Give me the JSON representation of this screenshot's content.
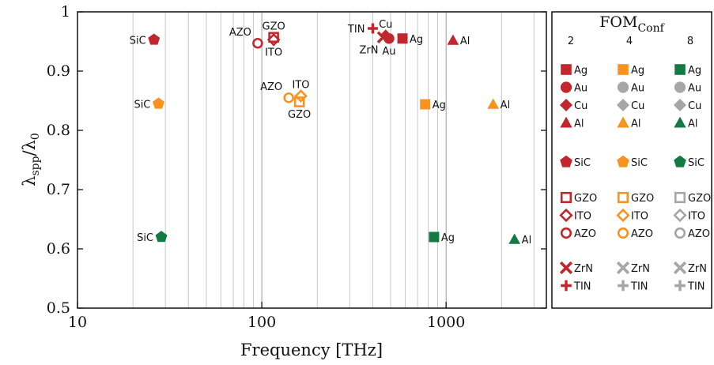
{
  "chart_data": {
    "type": "scatter",
    "title": "",
    "xlabel": "Frequency [THz]",
    "ylabel": "λspp/λ0",
    "ylabel_main": "λ",
    "ylabel_sub1": "spp",
    "ylabel_mid": "/λ",
    "ylabel_sub2": "0",
    "x_scale": "log",
    "xlim": [
      10,
      3500
    ],
    "ylim": [
      0.5,
      1.0
    ],
    "x_ticks": [
      10,
      100,
      1000
    ],
    "x_tick_labels": [
      "10",
      "100",
      "1000"
    ],
    "y_ticks": [
      0.5,
      0.6,
      0.7,
      0.8,
      0.9,
      1.0
    ],
    "y_tick_labels": [
      "0.5",
      "0.6",
      "0.7",
      "0.8",
      "0.9",
      "1"
    ],
    "grid": "vertical minor and major lines on x",
    "colors": {
      "2": "#c1272d",
      "4": "#f7931e",
      "8": "#137a43",
      "gray": "#a6a6a6"
    },
    "points": [
      {
        "group": "2",
        "material": "SiC",
        "marker": "pentagon",
        "fill": "filled",
        "x": 26,
        "y": 0.953,
        "label": "SiC",
        "label_pos": "left"
      },
      {
        "group": "2",
        "material": "AZO",
        "marker": "circle",
        "fill": "open",
        "x": 95,
        "y": 0.947,
        "label": "AZO",
        "label_pos": "above-left"
      },
      {
        "group": "2",
        "material": "GZO",
        "marker": "square",
        "fill": "open",
        "x": 116,
        "y": 0.957,
        "label": "GZO",
        "label_pos": "above"
      },
      {
        "group": "2",
        "material": "ITO",
        "marker": "diamond",
        "fill": "open",
        "x": 116,
        "y": 0.953,
        "label": "ITO",
        "label_pos": "below"
      },
      {
        "group": "2",
        "material": "TIN",
        "marker": "plus",
        "fill": "filled",
        "x": 400,
        "y": 0.972,
        "label": "TIN",
        "label_pos": "left"
      },
      {
        "group": "2",
        "material": "Cu",
        "marker": "diamond",
        "fill": "filled",
        "x": 470,
        "y": 0.96,
        "label": "Cu",
        "label_pos": "above"
      },
      {
        "group": "2",
        "material": "ZrN",
        "marker": "x",
        "fill": "filled",
        "x": 455,
        "y": 0.957,
        "label": "ZrN",
        "label_pos": "below-left"
      },
      {
        "group": "2",
        "material": "Au",
        "marker": "circle",
        "fill": "filled",
        "x": 490,
        "y": 0.955,
        "label": "Au",
        "label_pos": "below"
      },
      {
        "group": "2",
        "material": "Ag",
        "marker": "square",
        "fill": "filled",
        "x": 580,
        "y": 0.955,
        "label": "Ag",
        "label_pos": "right"
      },
      {
        "group": "2",
        "material": "Al",
        "marker": "triangle",
        "fill": "filled",
        "x": 1090,
        "y": 0.952,
        "label": "Al",
        "label_pos": "right"
      },
      {
        "group": "4",
        "material": "SiC",
        "marker": "pentagon",
        "fill": "filled",
        "x": 27.5,
        "y": 0.845,
        "label": "SiC",
        "label_pos": "left"
      },
      {
        "group": "4",
        "material": "AZO",
        "marker": "circle",
        "fill": "open",
        "x": 140,
        "y": 0.855,
        "label": "AZO",
        "label_pos": "above-left"
      },
      {
        "group": "4",
        "material": "ITO",
        "marker": "diamond",
        "fill": "open",
        "x": 163,
        "y": 0.858,
        "label": "ITO",
        "label_pos": "above"
      },
      {
        "group": "4",
        "material": "GZO",
        "marker": "square",
        "fill": "open",
        "x": 160,
        "y": 0.848,
        "label": "GZO",
        "label_pos": "below"
      },
      {
        "group": "4",
        "material": "Ag",
        "marker": "square",
        "fill": "filled",
        "x": 770,
        "y": 0.844,
        "label": "Ag",
        "label_pos": "right"
      },
      {
        "group": "4",
        "material": "Al",
        "marker": "triangle",
        "fill": "filled",
        "x": 1800,
        "y": 0.844,
        "label": "Al",
        "label_pos": "right"
      },
      {
        "group": "8",
        "material": "SiC",
        "marker": "pentagon",
        "fill": "filled",
        "x": 28.5,
        "y": 0.62,
        "label": "SiC",
        "label_pos": "left"
      },
      {
        "group": "8",
        "material": "Ag",
        "marker": "square",
        "fill": "filled",
        "x": 860,
        "y": 0.62,
        "label": "Ag",
        "label_pos": "right"
      },
      {
        "group": "8",
        "material": "Al",
        "marker": "triangle",
        "fill": "filled",
        "x": 2350,
        "y": 0.616,
        "label": "Al",
        "label_pos": "right"
      }
    ],
    "legend": {
      "placement": "right",
      "title_main": "FOM",
      "title_sub": "Conf",
      "columns": [
        {
          "header": "2",
          "color_key": "2"
        },
        {
          "header": "4",
          "color_key": "4"
        },
        {
          "header": "8",
          "color_key": "8"
        }
      ],
      "groups": [
        [
          {
            "marker": "square",
            "fill": "filled",
            "labels": [
              "Ag",
              "Ag",
              "Ag"
            ],
            "colors": [
              "2",
              "4",
              "8"
            ]
          },
          {
            "marker": "circle",
            "fill": "filled",
            "labels": [
              "Au",
              "Au",
              "Au"
            ],
            "colors": [
              "2",
              "gray",
              "gray"
            ]
          },
          {
            "marker": "diamond",
            "fill": "filled",
            "labels": [
              "Cu",
              "Cu",
              "Cu"
            ],
            "colors": [
              "2",
              "gray",
              "gray"
            ]
          },
          {
            "marker": "triangle",
            "fill": "filled",
            "labels": [
              "Al",
              "Al",
              "Al"
            ],
            "colors": [
              "2",
              "4",
              "8"
            ]
          }
        ],
        [
          {
            "marker": "pentagon",
            "fill": "filled",
            "labels": [
              "SiC",
              "SiC",
              "SiC"
            ],
            "colors": [
              "2",
              "4",
              "8"
            ]
          }
        ],
        [
          {
            "marker": "square",
            "fill": "open",
            "labels": [
              "GZO",
              "GZO",
              "GZO"
            ],
            "colors": [
              "2",
              "4",
              "gray"
            ]
          },
          {
            "marker": "diamond",
            "fill": "open",
            "labels": [
              "ITO",
              "ITO",
              "ITO"
            ],
            "colors": [
              "2",
              "4",
              "gray"
            ]
          },
          {
            "marker": "circle",
            "fill": "open",
            "labels": [
              "AZO",
              "AZO",
              "AZO"
            ],
            "colors": [
              "2",
              "4",
              "gray"
            ]
          }
        ],
        [
          {
            "marker": "x",
            "fill": "filled",
            "labels": [
              "ZrN",
              "ZrN",
              "ZrN"
            ],
            "colors": [
              "2",
              "gray",
              "gray"
            ]
          },
          {
            "marker": "plus",
            "fill": "filled",
            "labels": [
              "TIN",
              "TIN",
              "TIN"
            ],
            "colors": [
              "2",
              "gray",
              "gray"
            ]
          }
        ]
      ]
    }
  }
}
